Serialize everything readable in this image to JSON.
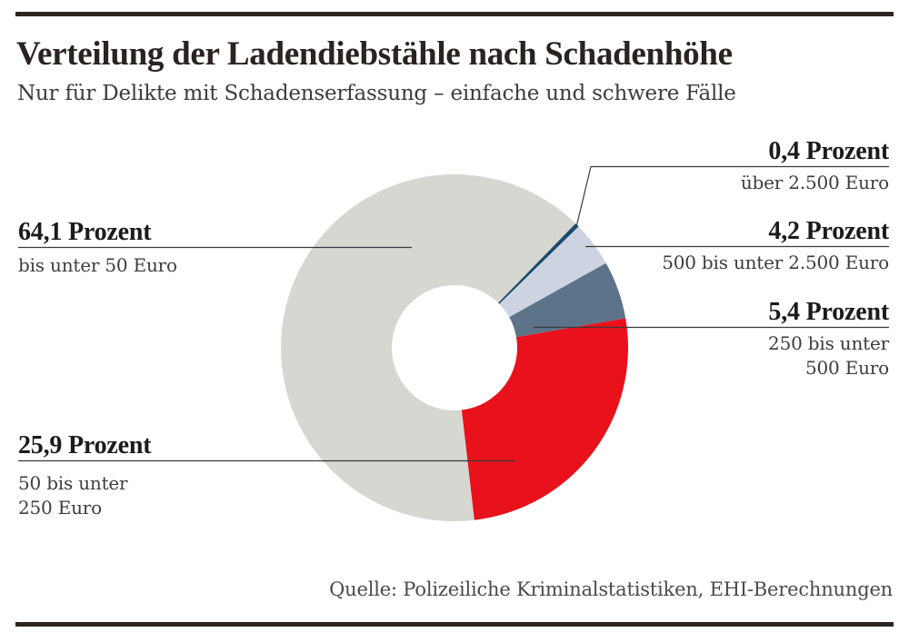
{
  "header": {
    "title": "Verteilung der Ladendiebstähle nach Schadenhöhe",
    "subtitle": "Nur für Delikte mit Schadenserfassung – einfache und schwere Fälle"
  },
  "source": "Quelle: Polizeiliche Kriminalstatistiken, EHI-Berechnungen",
  "chart_data": {
    "type": "pie",
    "variant": "donut",
    "title": "Verteilung der Ladendiebstähle nach Schadenhöhe",
    "subtitle": "Nur für Delikte mit Schadenserfassung – einfache und schwere Fälle",
    "unit": "Prozent",
    "start_angle_deg": 44.2,
    "inner_radius_ratio": 0.36,
    "legend_position": "callouts",
    "slices": [
      {
        "label": "über 2.500 Euro",
        "value": 0.4,
        "value_label": "0,4 Prozent",
        "color": "#1b4a6d"
      },
      {
        "label": "500 bis unter 2.500 Euro",
        "value": 4.2,
        "value_label": "4,2 Prozent",
        "color": "#cdd3e0"
      },
      {
        "label": "250 bis unter 500 Euro",
        "value": 5.4,
        "value_label": "5,4 Prozent",
        "color": "#5d7389"
      },
      {
        "label": "50 bis unter 250 Euro",
        "value": 25.9,
        "value_label": "25,9 Prozent",
        "color": "#e8111c"
      },
      {
        "label": "bis unter 50 Euro",
        "value": 64.1,
        "value_label": "64,1 Prozent",
        "color": "#d5d7d0"
      }
    ],
    "source": "Quelle: Polizeiliche Kriminalstatistiken, EHI-Berechnungen"
  },
  "callouts": {
    "c04": {
      "value": "0,4 Prozent",
      "lines": [
        "über 2.500 Euro"
      ]
    },
    "c42": {
      "value": "4,2 Prozent",
      "lines": [
        "500 bis unter 2.500 Euro"
      ]
    },
    "c54": {
      "value": "5,4 Prozent",
      "lines": [
        "250 bis unter",
        "500 Euro"
      ]
    },
    "c641": {
      "value": "64,1 Prozent",
      "lines": [
        "bis unter 50 Euro"
      ]
    },
    "c259": {
      "value": "25,9 Prozent",
      "lines": [
        "50 bis unter",
        "250 Euro"
      ]
    }
  }
}
